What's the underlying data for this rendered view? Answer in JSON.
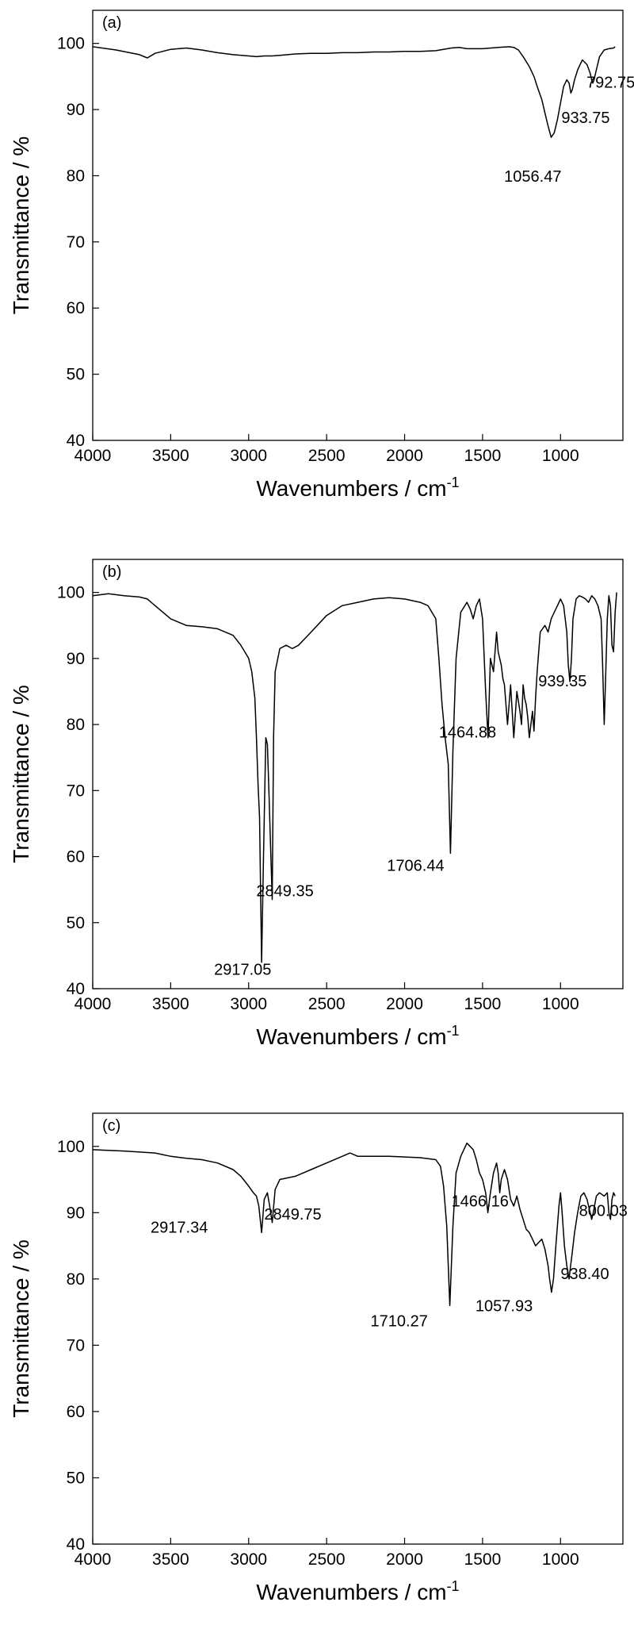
{
  "chart_data": [
    {
      "type": "line",
      "panel_label": "(a)",
      "xlabel": "Wavenumbers / cm",
      "xlabel_superscript": "-1",
      "ylabel": "Transmittance / %",
      "xlim": [
        4000,
        600
      ],
      "ylim": [
        40,
        105
      ],
      "x_ticks": [
        4000,
        3500,
        3000,
        2500,
        2000,
        1500,
        1000
      ],
      "y_ticks": [
        40,
        50,
        60,
        70,
        80,
        90,
        100
      ],
      "grid": false,
      "series": [
        {
          "x": [
            4000,
            3850,
            3700,
            3650,
            3600,
            3500,
            3400,
            3300,
            3200,
            3100,
            3000,
            2950,
            2900,
            2850,
            2800,
            2700,
            2600,
            2500,
            2400,
            2300,
            2200,
            2100,
            2000,
            1900,
            1800,
            1700,
            1650,
            1600,
            1500,
            1400,
            1330,
            1300,
            1270,
            1240,
            1200,
            1170,
            1150,
            1120,
            1100,
            1080,
            1060,
            1040,
            1020,
            1000,
            980,
            960,
            945,
            934,
            925,
            910,
            890,
            860,
            830,
            810,
            800,
            793,
            785,
            770,
            750,
            720,
            690,
            660,
            650
          ],
          "y": [
            99.5,
            99,
            98.3,
            97.8,
            98.5,
            99.1,
            99.3,
            99.0,
            98.6,
            98.3,
            98.1,
            98.0,
            98.1,
            98.1,
            98.2,
            98.4,
            98.5,
            98.5,
            98.6,
            98.6,
            98.7,
            98.7,
            98.8,
            98.8,
            98.9,
            99.3,
            99.4,
            99.2,
            99.2,
            99.4,
            99.5,
            99.4,
            99.0,
            98.0,
            96.5,
            95.0,
            93.5,
            91.5,
            89.5,
            87.5,
            85.8,
            86.5,
            88.5,
            91.0,
            93.5,
            94.5,
            94.0,
            92.5,
            93.0,
            94.5,
            96.0,
            97.5,
            96.8,
            95.5,
            94.5,
            94.0,
            94.5,
            96.0,
            98.0,
            99.0,
            99.2,
            99.3,
            99.5
          ]
        }
      ],
      "annotations": [
        {
          "text": "792.75",
          "x": 792.75,
          "y": 94.0
        },
        {
          "text": "933.75",
          "x": 933.75,
          "y": 92.5
        },
        {
          "text": "1056.47",
          "x": 1056.47,
          "y": 85.8
        }
      ]
    },
    {
      "type": "line",
      "panel_label": "(b)",
      "xlabel": "Wavenumbers / cm",
      "xlabel_superscript": "-1",
      "ylabel": "Transmittance / %",
      "xlim": [
        4000,
        600
      ],
      "ylim": [
        40,
        105
      ],
      "x_ticks": [
        4000,
        3500,
        3000,
        2500,
        2000,
        1500,
        1000
      ],
      "y_ticks": [
        40,
        50,
        60,
        70,
        80,
        90,
        100
      ],
      "grid": false,
      "series": [
        {
          "x": [
            4000,
            3900,
            3800,
            3700,
            3650,
            3600,
            3550,
            3500,
            3450,
            3400,
            3300,
            3200,
            3100,
            3050,
            3000,
            2980,
            2960,
            2950,
            2940,
            2930,
            2917,
            2905,
            2890,
            2880,
            2870,
            2860,
            2849,
            2840,
            2830,
            2800,
            2760,
            2720,
            2680,
            2600,
            2500,
            2400,
            2300,
            2200,
            2100,
            2000,
            1900,
            1850,
            1800,
            1780,
            1760,
            1740,
            1720,
            1706,
            1690,
            1670,
            1640,
            1600,
            1580,
            1560,
            1540,
            1520,
            1500,
            1480,
            1465,
            1450,
            1430,
            1410,
            1400,
            1380,
            1370,
            1360,
            1340,
            1320,
            1300,
            1280,
            1260,
            1250,
            1240,
            1230,
            1220,
            1210,
            1200,
            1190,
            1180,
            1170,
            1160,
            1150,
            1130,
            1100,
            1080,
            1060,
            1040,
            1020,
            1000,
            980,
            960,
            950,
            940,
            930,
            920,
            900,
            880,
            860,
            840,
            820,
            800,
            780,
            760,
            740,
            730,
            720,
            710,
            700,
            690,
            680,
            670,
            660,
            650,
            640
          ],
          "y": [
            99.5,
            99.8,
            99.5,
            99.3,
            99.0,
            98.0,
            97.0,
            96.0,
            95.5,
            95.0,
            94.8,
            94.5,
            93.5,
            92.0,
            90.0,
            88.0,
            84.0,
            78.0,
            71.0,
            66.0,
            44.0,
            60.0,
            78.0,
            77.0,
            70.0,
            62.0,
            53.5,
            78.0,
            88.0,
            91.5,
            92.0,
            91.5,
            92.0,
            94.0,
            96.5,
            98.0,
            98.5,
            99.0,
            99.2,
            99.0,
            98.5,
            98.0,
            96.0,
            90.0,
            83.0,
            78.0,
            74.0,
            60.5,
            76.0,
            90.0,
            97.0,
            98.5,
            97.5,
            96.0,
            98.0,
            99.0,
            96.0,
            85.0,
            78.0,
            90.0,
            88.0,
            94.0,
            91.0,
            89.0,
            87.0,
            86.0,
            80.0,
            86.0,
            78.0,
            85.0,
            82.0,
            80.0,
            86.0,
            84.0,
            83.0,
            81.0,
            78.0,
            80.0,
            82.0,
            79.0,
            84.0,
            88.0,
            94.0,
            95.0,
            94.0,
            96.0,
            97.0,
            98.0,
            99.0,
            98.0,
            94.0,
            89.0,
            86.5,
            90.0,
            96.0,
            99.0,
            99.5,
            99.3,
            99.0,
            98.5,
            99.5,
            99.0,
            98.0,
            96.0,
            89.0,
            80.0,
            88.0,
            96.0,
            99.5,
            98.0,
            92.0,
            91.0,
            97.0,
            100.0
          ]
        }
      ],
      "annotations": [
        {
          "text": "2849.35",
          "x": 2849.35,
          "y": 53.5
        },
        {
          "text": "2917.05",
          "x": 2917.05,
          "y": 44.0
        },
        {
          "text": "1706.44",
          "x": 1706.44,
          "y": 60.5
        },
        {
          "text": "1464.88",
          "x": 1464.88,
          "y": 78.0
        },
        {
          "text": "939.35",
          "x": 939.35,
          "y": 86.5
        }
      ]
    },
    {
      "type": "line",
      "panel_label": "(c)",
      "xlabel": "Wavenumbers / cm",
      "xlabel_superscript": "-1",
      "ylabel": "Transmittance / %",
      "xlim": [
        4000,
        600
      ],
      "ylim": [
        40,
        105
      ],
      "x_ticks": [
        4000,
        3500,
        3000,
        2500,
        2000,
        1500,
        1000
      ],
      "y_ticks": [
        40,
        50,
        60,
        70,
        80,
        90,
        100
      ],
      "grid": false,
      "series": [
        {
          "x": [
            4000,
            3800,
            3600,
            3500,
            3400,
            3300,
            3200,
            3100,
            3050,
            3000,
            2970,
            2950,
            2935,
            2917,
            2900,
            2880,
            2865,
            2849,
            2830,
            2800,
            2700,
            2600,
            2500,
            2400,
            2350,
            2300,
            2200,
            2100,
            2000,
            1900,
            1800,
            1770,
            1750,
            1730,
            1710,
            1690,
            1670,
            1640,
            1620,
            1600,
            1580,
            1560,
            1540,
            1520,
            1500,
            1480,
            1466,
            1450,
            1430,
            1410,
            1400,
            1390,
            1380,
            1360,
            1340,
            1320,
            1300,
            1280,
            1260,
            1240,
            1220,
            1200,
            1180,
            1160,
            1140,
            1120,
            1100,
            1080,
            1070,
            1058,
            1045,
            1030,
            1010,
            1000,
            990,
            975,
            960,
            945,
            938,
            925,
            910,
            890,
            870,
            850,
            830,
            810,
            800,
            790,
            770,
            750,
            720,
            700,
            690,
            680,
            670,
            660,
            650
          ],
          "y": [
            99.5,
            99.3,
            99.0,
            98.5,
            98.2,
            98.0,
            97.5,
            96.5,
            95.5,
            94.0,
            93.0,
            92.5,
            91.0,
            87.0,
            92.0,
            93.0,
            91.0,
            88.5,
            93.5,
            95.0,
            95.5,
            96.5,
            97.5,
            98.5,
            99.0,
            98.5,
            98.5,
            98.5,
            98.4,
            98.3,
            98.0,
            97.0,
            94.0,
            88.0,
            76.0,
            88.0,
            96.0,
            98.5,
            99.5,
            100.5,
            100.0,
            99.5,
            98.0,
            96.0,
            95.0,
            93.0,
            90.0,
            93.0,
            96.0,
            97.5,
            96.0,
            93.0,
            95.0,
            96.5,
            95.0,
            92.0,
            91.0,
            92.5,
            90.5,
            89.0,
            87.5,
            87.0,
            86.0,
            85.0,
            85.5,
            86.0,
            84.5,
            82.0,
            80.0,
            78.0,
            80.0,
            85.0,
            91.0,
            93.0,
            90.0,
            85.0,
            82.0,
            80.0,
            81.5,
            84.0,
            87.0,
            90.0,
            92.5,
            93.0,
            92.0,
            90.0,
            89.0,
            90.0,
            92.5,
            93.0,
            92.5,
            93.0,
            90.0,
            89.0,
            92.0,
            93.0,
            92.5
          ]
        }
      ],
      "annotations": [
        {
          "text": "2917.34",
          "x": 2917.34,
          "y": 87.0
        },
        {
          "text": "2849.75",
          "x": 2849.75,
          "y": 88.5
        },
        {
          "text": "1466.16",
          "x": 1466.16,
          "y": 90.0
        },
        {
          "text": "800.03",
          "x": 800.03,
          "y": 89.0
        },
        {
          "text": "938.40",
          "x": 938.4,
          "y": 80.0
        },
        {
          "text": "1710.27",
          "x": 1710.27,
          "y": 76.0
        },
        {
          "text": "1057.93",
          "x": 1057.93,
          "y": 78.0
        }
      ]
    }
  ]
}
